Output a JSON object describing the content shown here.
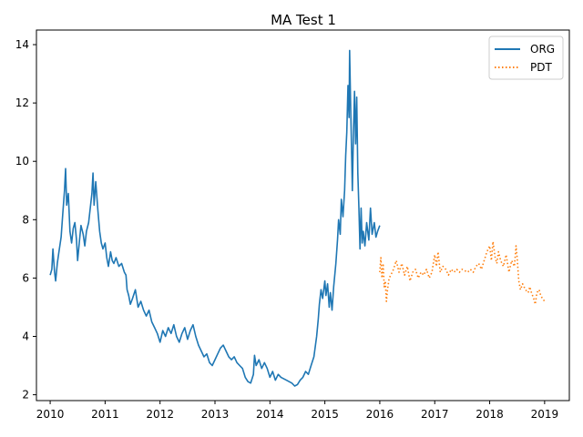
{
  "chart_data": {
    "type": "line",
    "title": "MA Test 1",
    "xlabel": "",
    "ylabel": "",
    "xlim": [
      2009.75,
      2019.45
    ],
    "ylim": [
      1.8,
      14.5
    ],
    "xticks": [
      {
        "value": 2010,
        "label": "2010"
      },
      {
        "value": 2011,
        "label": "2011"
      },
      {
        "value": 2012,
        "label": "2012"
      },
      {
        "value": 2013,
        "label": "2013"
      },
      {
        "value": 2014,
        "label": "2014"
      },
      {
        "value": 2015,
        "label": "2015"
      },
      {
        "value": 2016,
        "label": "2016"
      },
      {
        "value": 2017,
        "label": "2017"
      },
      {
        "value": 2018,
        "label": "2018"
      },
      {
        "value": 2019,
        "label": "2019"
      }
    ],
    "yticks": [
      {
        "value": 2,
        "label": "2"
      },
      {
        "value": 4,
        "label": "4"
      },
      {
        "value": 6,
        "label": "6"
      },
      {
        "value": 8,
        "label": "8"
      },
      {
        "value": 10,
        "label": "10"
      },
      {
        "value": 12,
        "label": "12"
      },
      {
        "value": 14,
        "label": "14"
      }
    ],
    "grid": false,
    "legend_position": "top-right",
    "series": [
      {
        "name": "ORG",
        "color": "#1f77b4",
        "style": "solid",
        "points": [
          [
            2010.0,
            6.1
          ],
          [
            2010.03,
            6.3
          ],
          [
            2010.05,
            7.0
          ],
          [
            2010.08,
            6.2
          ],
          [
            2010.1,
            5.9
          ],
          [
            2010.13,
            6.5
          ],
          [
            2010.16,
            6.9
          ],
          [
            2010.2,
            7.4
          ],
          [
            2010.23,
            8.2
          ],
          [
            2010.26,
            9.0
          ],
          [
            2010.28,
            9.75
          ],
          [
            2010.3,
            8.5
          ],
          [
            2010.33,
            8.9
          ],
          [
            2010.36,
            7.6
          ],
          [
            2010.39,
            7.2
          ],
          [
            2010.42,
            7.7
          ],
          [
            2010.45,
            7.9
          ],
          [
            2010.48,
            7.3
          ],
          [
            2010.5,
            6.6
          ],
          [
            2010.53,
            7.2
          ],
          [
            2010.56,
            7.8
          ],
          [
            2010.6,
            7.5
          ],
          [
            2010.63,
            7.1
          ],
          [
            2010.66,
            7.6
          ],
          [
            2010.7,
            7.9
          ],
          [
            2010.73,
            8.4
          ],
          [
            2010.76,
            8.9
          ],
          [
            2010.78,
            9.6
          ],
          [
            2010.8,
            8.5
          ],
          [
            2010.83,
            9.3
          ],
          [
            2010.87,
            8.3
          ],
          [
            2010.9,
            7.6
          ],
          [
            2010.93,
            7.2
          ],
          [
            2010.96,
            7.0
          ],
          [
            2011.0,
            7.2
          ],
          [
            2011.03,
            6.7
          ],
          [
            2011.06,
            6.4
          ],
          [
            2011.1,
            6.9
          ],
          [
            2011.13,
            6.6
          ],
          [
            2011.16,
            6.5
          ],
          [
            2011.2,
            6.7
          ],
          [
            2011.25,
            6.4
          ],
          [
            2011.3,
            6.5
          ],
          [
            2011.35,
            6.2
          ],
          [
            2011.38,
            6.1
          ],
          [
            2011.4,
            5.6
          ],
          [
            2011.43,
            5.4
          ],
          [
            2011.46,
            5.1
          ],
          [
            2011.5,
            5.3
          ],
          [
            2011.55,
            5.6
          ],
          [
            2011.6,
            5.0
          ],
          [
            2011.65,
            5.2
          ],
          [
            2011.7,
            4.9
          ],
          [
            2011.75,
            4.7
          ],
          [
            2011.8,
            4.9
          ],
          [
            2011.85,
            4.5
          ],
          [
            2011.9,
            4.3
          ],
          [
            2011.95,
            4.1
          ],
          [
            2012.0,
            3.8
          ],
          [
            2012.05,
            4.2
          ],
          [
            2012.1,
            4.0
          ],
          [
            2012.15,
            4.3
          ],
          [
            2012.2,
            4.1
          ],
          [
            2012.25,
            4.4
          ],
          [
            2012.3,
            4.0
          ],
          [
            2012.35,
            3.8
          ],
          [
            2012.4,
            4.1
          ],
          [
            2012.45,
            4.3
          ],
          [
            2012.5,
            3.9
          ],
          [
            2012.55,
            4.2
          ],
          [
            2012.6,
            4.4
          ],
          [
            2012.65,
            4.0
          ],
          [
            2012.7,
            3.7
          ],
          [
            2012.75,
            3.5
          ],
          [
            2012.8,
            3.3
          ],
          [
            2012.85,
            3.4
          ],
          [
            2012.9,
            3.1
          ],
          [
            2012.95,
            3.0
          ],
          [
            2013.0,
            3.2
          ],
          [
            2013.05,
            3.4
          ],
          [
            2013.1,
            3.6
          ],
          [
            2013.15,
            3.7
          ],
          [
            2013.2,
            3.5
          ],
          [
            2013.25,
            3.3
          ],
          [
            2013.3,
            3.2
          ],
          [
            2013.35,
            3.3
          ],
          [
            2013.4,
            3.1
          ],
          [
            2013.45,
            3.0
          ],
          [
            2013.5,
            2.9
          ],
          [
            2013.55,
            2.6
          ],
          [
            2013.6,
            2.45
          ],
          [
            2013.65,
            2.4
          ],
          [
            2013.7,
            2.7
          ],
          [
            2013.72,
            3.35
          ],
          [
            2013.75,
            3.0
          ],
          [
            2013.8,
            3.2
          ],
          [
            2013.85,
            2.9
          ],
          [
            2013.9,
            3.1
          ],
          [
            2013.95,
            2.9
          ],
          [
            2014.0,
            2.6
          ],
          [
            2014.05,
            2.8
          ],
          [
            2014.1,
            2.5
          ],
          [
            2014.15,
            2.7
          ],
          [
            2014.2,
            2.6
          ],
          [
            2014.3,
            2.5
          ],
          [
            2014.4,
            2.4
          ],
          [
            2014.45,
            2.3
          ],
          [
            2014.5,
            2.35
          ],
          [
            2014.55,
            2.5
          ],
          [
            2014.6,
            2.6
          ],
          [
            2014.65,
            2.8
          ],
          [
            2014.7,
            2.7
          ],
          [
            2014.75,
            3.0
          ],
          [
            2014.8,
            3.3
          ],
          [
            2014.85,
            4.0
          ],
          [
            2014.88,
            4.6
          ],
          [
            2014.9,
            5.1
          ],
          [
            2014.93,
            5.6
          ],
          [
            2014.96,
            5.3
          ],
          [
            2015.0,
            5.9
          ],
          [
            2015.02,
            5.4
          ],
          [
            2015.05,
            5.8
          ],
          [
            2015.08,
            5.0
          ],
          [
            2015.1,
            5.5
          ],
          [
            2015.13,
            4.9
          ],
          [
            2015.16,
            5.7
          ],
          [
            2015.2,
            6.5
          ],
          [
            2015.23,
            7.3
          ],
          [
            2015.25,
            8.0
          ],
          [
            2015.28,
            7.5
          ],
          [
            2015.3,
            8.7
          ],
          [
            2015.33,
            8.1
          ],
          [
            2015.36,
            9.0
          ],
          [
            2015.38,
            10.2
          ],
          [
            2015.4,
            11.0
          ],
          [
            2015.42,
            12.6
          ],
          [
            2015.44,
            11.5
          ],
          [
            2015.45,
            13.8
          ],
          [
            2015.47,
            11.8
          ],
          [
            2015.49,
            10.0
          ],
          [
            2015.5,
            9.0
          ],
          [
            2015.52,
            11.0
          ],
          [
            2015.54,
            12.4
          ],
          [
            2015.56,
            10.6
          ],
          [
            2015.58,
            12.2
          ],
          [
            2015.6,
            9.6
          ],
          [
            2015.62,
            8.4
          ],
          [
            2015.64,
            7.0
          ],
          [
            2015.66,
            8.4
          ],
          [
            2015.68,
            7.2
          ],
          [
            2015.7,
            7.6
          ],
          [
            2015.73,
            7.1
          ],
          [
            2015.76,
            7.9
          ],
          [
            2015.8,
            7.3
          ],
          [
            2015.83,
            8.4
          ],
          [
            2015.86,
            7.5
          ],
          [
            2015.9,
            7.9
          ],
          [
            2015.93,
            7.4
          ],
          [
            2015.96,
            7.6
          ],
          [
            2016.0,
            7.8
          ]
        ]
      },
      {
        "name": "PDT",
        "color": "#ff7f0e",
        "style": "dotted",
        "points": [
          [
            2016.0,
            6.2
          ],
          [
            2016.02,
            6.7
          ],
          [
            2016.04,
            6.0
          ],
          [
            2016.06,
            6.5
          ],
          [
            2016.08,
            5.7
          ],
          [
            2016.1,
            5.9
          ],
          [
            2016.12,
            5.2
          ],
          [
            2016.14,
            5.6
          ],
          [
            2016.17,
            6.0
          ],
          [
            2016.2,
            6.1
          ],
          [
            2016.25,
            6.3
          ],
          [
            2016.3,
            6.6
          ],
          [
            2016.35,
            6.2
          ],
          [
            2016.4,
            6.5
          ],
          [
            2016.45,
            6.1
          ],
          [
            2016.5,
            6.4
          ],
          [
            2016.55,
            5.9
          ],
          [
            2016.6,
            6.2
          ],
          [
            2016.65,
            6.3
          ],
          [
            2016.7,
            6.0
          ],
          [
            2016.75,
            6.2
          ],
          [
            2016.8,
            6.1
          ],
          [
            2016.85,
            6.3
          ],
          [
            2016.9,
            6.0
          ],
          [
            2016.95,
            6.2
          ],
          [
            2017.0,
            6.8
          ],
          [
            2017.03,
            6.4
          ],
          [
            2017.06,
            6.9
          ],
          [
            2017.1,
            6.2
          ],
          [
            2017.15,
            6.4
          ],
          [
            2017.2,
            6.3
          ],
          [
            2017.25,
            6.1
          ],
          [
            2017.3,
            6.3
          ],
          [
            2017.35,
            6.2
          ],
          [
            2017.4,
            6.3
          ],
          [
            2017.45,
            6.2
          ],
          [
            2017.5,
            6.3
          ],
          [
            2017.55,
            6.25
          ],
          [
            2017.6,
            6.2
          ],
          [
            2017.65,
            6.3
          ],
          [
            2017.7,
            6.2
          ],
          [
            2017.75,
            6.4
          ],
          [
            2017.8,
            6.5
          ],
          [
            2017.85,
            6.3
          ],
          [
            2017.9,
            6.6
          ],
          [
            2017.95,
            6.9
          ],
          [
            2018.0,
            7.1
          ],
          [
            2018.03,
            6.6
          ],
          [
            2018.06,
            7.25
          ],
          [
            2018.1,
            6.7
          ],
          [
            2018.13,
            6.5
          ],
          [
            2018.16,
            6.9
          ],
          [
            2018.2,
            6.6
          ],
          [
            2018.25,
            6.4
          ],
          [
            2018.3,
            6.8
          ],
          [
            2018.35,
            6.2
          ],
          [
            2018.4,
            6.6
          ],
          [
            2018.45,
            6.4
          ],
          [
            2018.48,
            7.1
          ],
          [
            2018.5,
            6.7
          ],
          [
            2018.53,
            5.9
          ],
          [
            2018.56,
            5.6
          ],
          [
            2018.6,
            5.8
          ],
          [
            2018.65,
            5.6
          ],
          [
            2018.7,
            5.5
          ],
          [
            2018.73,
            5.7
          ],
          [
            2018.76,
            5.5
          ],
          [
            2018.8,
            5.3
          ],
          [
            2018.83,
            5.1
          ],
          [
            2018.86,
            5.5
          ],
          [
            2018.9,
            5.6
          ],
          [
            2018.93,
            5.4
          ],
          [
            2018.96,
            5.3
          ],
          [
            2019.0,
            5.2
          ]
        ]
      }
    ]
  }
}
